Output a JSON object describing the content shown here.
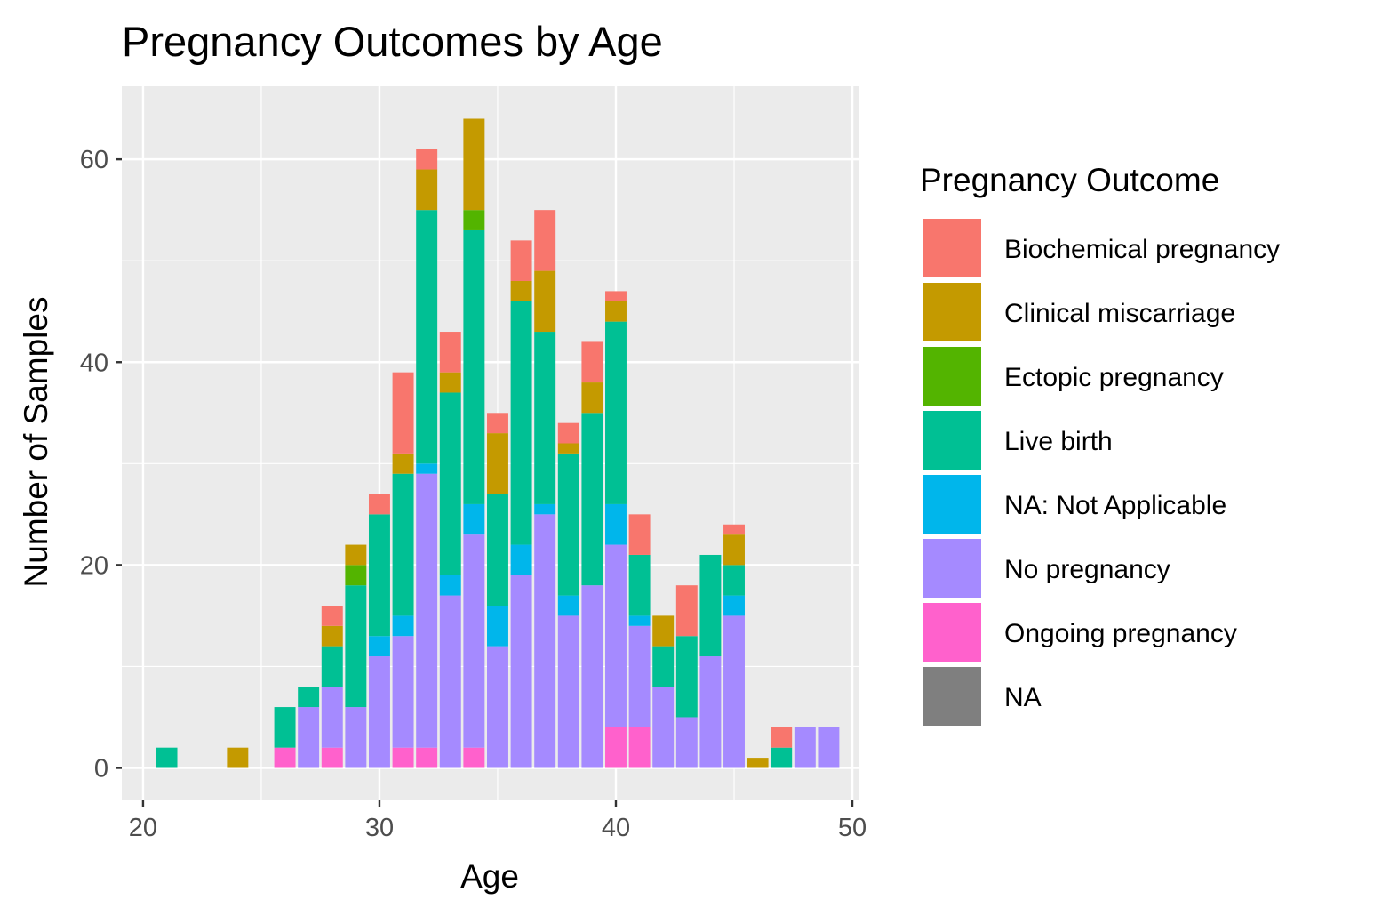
{
  "chart_data": {
    "type": "bar",
    "stacked": true,
    "title": "Pregnancy Outcomes by Age",
    "xlabel": "Age",
    "ylabel": "Number of Samples",
    "xlim": [
      19.1,
      50.3
    ],
    "ylim": [
      -3.2,
      67.2
    ],
    "x_ticks": [
      20,
      30,
      40,
      50
    ],
    "y_ticks": [
      0,
      20,
      40,
      60
    ],
    "grid": true,
    "legend": {
      "title": "Pregnancy Outcome",
      "placement": "right"
    },
    "x": [
      21,
      24,
      26,
      27,
      28,
      29,
      30,
      31,
      32,
      33,
      34,
      35,
      36,
      37,
      38,
      39,
      40,
      41,
      42,
      43,
      44,
      45,
      46,
      47,
      48,
      49
    ],
    "series": [
      {
        "name": "Ongoing pregnancy",
        "color": "#FF61CC",
        "values": [
          0,
          0,
          2,
          0,
          2,
          0,
          0,
          2,
          2,
          0,
          2,
          0,
          0,
          0,
          0,
          0,
          4,
          4,
          0,
          0,
          0,
          0,
          0,
          0,
          0,
          0
        ]
      },
      {
        "name": "No pregnancy",
        "color": "#A58AFF",
        "values": [
          0,
          0,
          0,
          6,
          6,
          6,
          11,
          11,
          27,
          17,
          21,
          12,
          19,
          25,
          15,
          18,
          18,
          10,
          8,
          5,
          11,
          15,
          0,
          0,
          4,
          4
        ]
      },
      {
        "name": "NA: Not Applicable",
        "color": "#00B6EB",
        "values": [
          0,
          0,
          0,
          0,
          0,
          0,
          2,
          2,
          1,
          2,
          3,
          4,
          3,
          1,
          2,
          0,
          4,
          1,
          0,
          0,
          0,
          2,
          0,
          0,
          0,
          0
        ]
      },
      {
        "name": "Live birth",
        "color": "#00C094",
        "values": [
          2,
          0,
          4,
          2,
          4,
          12,
          12,
          14,
          25,
          18,
          27,
          11,
          24,
          17,
          14,
          17,
          18,
          6,
          4,
          8,
          10,
          3,
          0,
          2,
          0,
          0
        ]
      },
      {
        "name": "Ectopic pregnancy",
        "color": "#53B400",
        "values": [
          0,
          0,
          0,
          0,
          0,
          2,
          0,
          0,
          0,
          0,
          2,
          0,
          0,
          0,
          0,
          0,
          0,
          0,
          0,
          0,
          0,
          0,
          0,
          0,
          0,
          0
        ]
      },
      {
        "name": "Clinical miscarriage",
        "color": "#C49A00",
        "values": [
          0,
          2,
          0,
          0,
          2,
          2,
          0,
          2,
          4,
          2,
          9,
          6,
          2,
          6,
          1,
          3,
          2,
          0,
          3,
          0,
          0,
          3,
          1,
          0,
          0,
          0
        ]
      },
      {
        "name": "Biochemical pregnancy",
        "color": "#F8766D",
        "values": [
          0,
          0,
          0,
          0,
          2,
          0,
          2,
          8,
          2,
          4,
          0,
          2,
          4,
          6,
          2,
          4,
          1,
          4,
          0,
          5,
          0,
          1,
          0,
          2,
          0,
          0
        ]
      }
    ],
    "legend_entries": [
      {
        "name": "Biochemical pregnancy",
        "color": "#F8766D"
      },
      {
        "name": "Clinical miscarriage",
        "color": "#C49A00"
      },
      {
        "name": "Ectopic pregnancy",
        "color": "#53B400"
      },
      {
        "name": "Live birth",
        "color": "#00C094"
      },
      {
        "name": "NA: Not Applicable",
        "color": "#00B6EB"
      },
      {
        "name": "No pregnancy",
        "color": "#A58AFF"
      },
      {
        "name": "Ongoing pregnancy",
        "color": "#FF61CC"
      },
      {
        "name": "NA",
        "color": "#7F7F7F"
      }
    ],
    "panel_background": "#EBEBEB",
    "grid_color": "#FFFFFF"
  }
}
